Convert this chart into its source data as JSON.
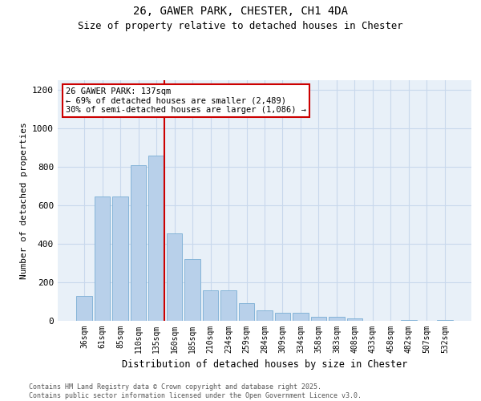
{
  "title_line1": "26, GAWER PARK, CHESTER, CH1 4DA",
  "title_line2": "Size of property relative to detached houses in Chester",
  "xlabel": "Distribution of detached houses by size in Chester",
  "ylabel": "Number of detached properties",
  "categories": [
    "36sqm",
    "61sqm",
    "85sqm",
    "110sqm",
    "135sqm",
    "160sqm",
    "185sqm",
    "210sqm",
    "234sqm",
    "259sqm",
    "284sqm",
    "309sqm",
    "334sqm",
    "358sqm",
    "383sqm",
    "408sqm",
    "433sqm",
    "458sqm",
    "482sqm",
    "507sqm",
    "532sqm"
  ],
  "values": [
    130,
    645,
    645,
    810,
    860,
    455,
    320,
    160,
    160,
    90,
    55,
    42,
    42,
    20,
    20,
    12,
    0,
    0,
    5,
    0,
    5
  ],
  "bar_color": "#b8d0ea",
  "bar_edge_color": "#7aadd4",
  "grid_color": "#c8d8ec",
  "background_color": "#e8f0f8",
  "vline_index": 4,
  "vline_color": "#cc0000",
  "annotation_title": "26 GAWER PARK: 137sqm",
  "annotation_line2": "← 69% of detached houses are smaller (2,489)",
  "annotation_line3": "30% of semi-detached houses are larger (1,086) →",
  "annotation_edge_color": "#cc0000",
  "ylim": [
    0,
    1250
  ],
  "yticks": [
    0,
    200,
    400,
    600,
    800,
    1000,
    1200
  ],
  "footer_line1": "Contains HM Land Registry data © Crown copyright and database right 2025.",
  "footer_line2": "Contains public sector information licensed under the Open Government Licence v3.0."
}
